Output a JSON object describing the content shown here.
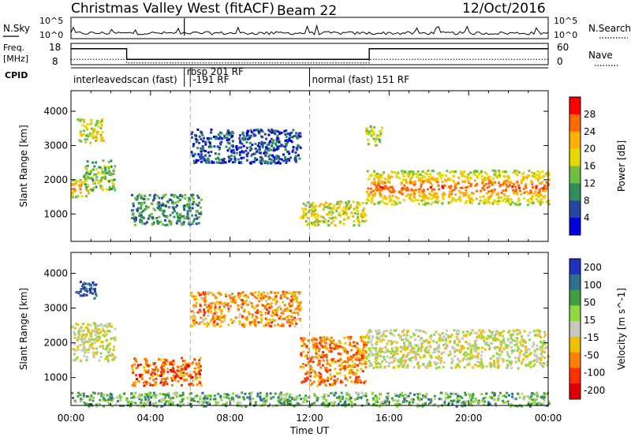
{
  "header": {
    "title": "Christmas Valley West (fitACF)",
    "beam": "Beam 22",
    "date": "12/Oct/2016"
  },
  "top_panels": {
    "nsky_label": "N.Sky",
    "nsky_ticks": [
      "10^5",
      "10^0"
    ],
    "nsearch_label": "N.Search",
    "nsearch_ticks": [
      "10^5",
      "10^0"
    ],
    "freq_label_line1": "Freq.",
    "freq_label_line2": "[MHz]",
    "freq_ticks": [
      "18",
      "8"
    ],
    "nave_label": "Nave",
    "nave_ticks": [
      "60",
      "0"
    ],
    "cpid_label": "CPID"
  },
  "cpid_segments": [
    {
      "start_hour": 0.0,
      "label": "interleavedscan (fast)"
    },
    {
      "start_hour": 5.7,
      "label": "rbsp 201 RF"
    },
    {
      "start_hour": 6.0,
      "label": "-191 RF"
    },
    {
      "start_hour": 12.0,
      "label": "normal (fast) 151 RF"
    }
  ],
  "frequency_steps": [
    {
      "hour": 0.0,
      "mhz": 15.5
    },
    {
      "hour": 2.8,
      "mhz": 10.5
    },
    {
      "hour": 15.0,
      "mhz": 15.5
    },
    {
      "hour": 24.0,
      "mhz": 15.5
    }
  ],
  "nave_steps": [
    {
      "hour": 0.0,
      "value": 15
    },
    {
      "hour": 2.8,
      "value": 5
    },
    {
      "hour": 15.0,
      "value": 15
    },
    {
      "hour": 24.0,
      "value": 15
    }
  ],
  "chart_data": [
    {
      "type": "heatmap",
      "name": "power",
      "ylabel": "Slant Range [km]",
      "xlabel": "Time UT",
      "xlim": [
        0,
        24
      ],
      "ylim": [
        200,
        4600
      ],
      "yticks": [
        "1000",
        "2000",
        "3000",
        "4000"
      ],
      "xticks": [
        "00:00",
        "04:00",
        "08:00",
        "12:00",
        "16:00",
        "20:00",
        "00:00"
      ],
      "colorbar_label": "Power [dB]",
      "colorbar_ticks": [
        "28",
        "24",
        "20",
        "16",
        "12",
        "8",
        "4"
      ],
      "colorbar_colors": [
        "#ff0000",
        "#ff6a00",
        "#ffb000",
        "#e8d800",
        "#6fbf3f",
        "#2f8f5a",
        "#2846a0",
        "#0000e0"
      ],
      "regions": [
        {
          "t0": 0.0,
          "t1": 0.9,
          "r0": 1500,
          "r1": 2100,
          "level": 0.85
        },
        {
          "t0": 0.3,
          "t1": 1.6,
          "r0": 3100,
          "r1": 3800,
          "level": 0.55
        },
        {
          "t0": 0.6,
          "t1": 2.2,
          "r0": 1700,
          "r1": 2600,
          "level": 0.45
        },
        {
          "t0": 3.0,
          "t1": 6.5,
          "r0": 700,
          "r1": 1600,
          "level": 0.3
        },
        {
          "t0": 6.0,
          "t1": 11.5,
          "r0": 2500,
          "r1": 3500,
          "level": 0.15
        },
        {
          "t0": 11.5,
          "t1": 14.8,
          "r0": 700,
          "r1": 1400,
          "level": 0.55
        },
        {
          "t0": 14.8,
          "t1": 24.0,
          "r0": 1300,
          "r1": 2300,
          "level": 0.9
        },
        {
          "t0": 14.8,
          "t1": 15.6,
          "r0": 3000,
          "r1": 3600,
          "level": 0.5
        }
      ]
    },
    {
      "type": "heatmap",
      "name": "velocity",
      "ylabel": "Slant Range [km]",
      "xlabel": "Time UT",
      "xlim": [
        0,
        24
      ],
      "ylim": [
        200,
        4600
      ],
      "yticks": [
        "1000",
        "2000",
        "3000",
        "4000"
      ],
      "xticks": [
        "00:00",
        "04:00",
        "08:00",
        "12:00",
        "16:00",
        "20:00",
        "00:00"
      ],
      "colorbar_label": "Velocity [m s^-1]",
      "colorbar_ticks": [
        "200",
        "100",
        "50",
        "15",
        "-15",
        "-50",
        "-100",
        "-200"
      ],
      "colorbar_colors": [
        "#2030c0",
        "#2f6f8f",
        "#3f9f3f",
        "#8fd83f",
        "#c8c8c0",
        "#f0c000",
        "#ff8000",
        "#ff3000",
        "#e00000"
      ],
      "regions": [
        {
          "t0": 0.0,
          "t1": 2.2,
          "r0": 1500,
          "r1": 2600,
          "level": 0.5
        },
        {
          "t0": 0.2,
          "t1": 1.3,
          "r0": 3300,
          "r1": 3800,
          "level": 0.95
        },
        {
          "t0": 3.0,
          "t1": 6.5,
          "r0": 800,
          "r1": 1600,
          "level": 0.2
        },
        {
          "t0": 6.0,
          "t1": 11.5,
          "r0": 2500,
          "r1": 3500,
          "level": 0.3
        },
        {
          "t0": 11.5,
          "t1": 14.8,
          "r0": 800,
          "r1": 2200,
          "level": 0.25
        },
        {
          "t0": 14.8,
          "t1": 24.0,
          "r0": 1300,
          "r1": 2400,
          "level": 0.5
        },
        {
          "t0": 0.0,
          "t1": 24.0,
          "r0": 200,
          "r1": 600,
          "level": 0.7
        }
      ]
    }
  ]
}
